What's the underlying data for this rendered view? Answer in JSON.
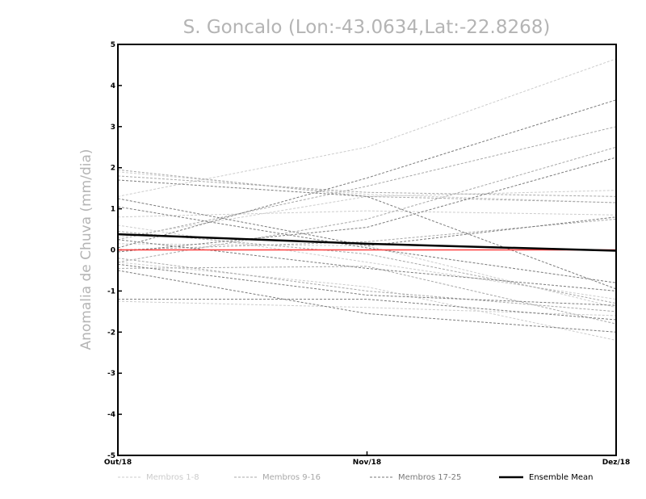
{
  "chart_data": {
    "type": "line",
    "title": "S. Goncalo (Lon:-43.0634,Lat:-22.8268)",
    "ylabel": "Anomalia de Chuva (mm/dia)",
    "xlabel": "",
    "categories": [
      "Out/18",
      "Nov/18",
      "Dez/18"
    ],
    "ylim": [
      -5,
      5
    ],
    "yticks": [
      "-5",
      "-4",
      "-3",
      "-2",
      "-1",
      "0",
      "1",
      "2",
      "3",
      "4",
      "5"
    ],
    "reference_line": {
      "y": 0,
      "color": "#ff4040"
    },
    "colors": {
      "members_1_8": "#cccccc",
      "members_9_16": "#a8a8a8",
      "members_17_25": "#7a7a7a",
      "ensemble_mean": "#000000"
    },
    "legend": [
      {
        "label": "Membros 1-8",
        "group": "members_1_8"
      },
      {
        "label": "Membros 9-16",
        "group": "members_9_16"
      },
      {
        "label": "Membros 17-25",
        "group": "members_17_25"
      },
      {
        "label": "Ensemble Mean",
        "group": "ensemble_mean"
      }
    ],
    "series": [
      {
        "group": "members_1_8",
        "values": [
          1.3,
          2.5,
          4.65
        ]
      },
      {
        "group": "members_1_8",
        "values": [
          1.9,
          1.35,
          1.15
        ]
      },
      {
        "group": "members_1_8",
        "values": [
          0.8,
          0.95,
          0.85
        ]
      },
      {
        "group": "members_1_8",
        "values": [
          0.3,
          1.3,
          1.45
        ]
      },
      {
        "group": "members_1_8",
        "values": [
          0.6,
          -0.3,
          -1.2
        ]
      },
      {
        "group": "members_1_8",
        "values": [
          -0.3,
          -0.9,
          -2.2
        ]
      },
      {
        "group": "members_1_8",
        "values": [
          -1.25,
          -1.4,
          -1.6
        ]
      },
      {
        "group": "members_1_8",
        "values": [
          0.15,
          0.1,
          -1.4
        ]
      },
      {
        "group": "members_9_16",
        "values": [
          1.95,
          1.3,
          1.15
        ]
      },
      {
        "group": "members_9_16",
        "values": [
          1.8,
          1.4,
          1.3
        ]
      },
      {
        "group": "members_9_16",
        "values": [
          0.25,
          1.55,
          3.0
        ]
      },
      {
        "group": "members_9_16",
        "values": [
          -0.3,
          0.75,
          2.5
        ]
      },
      {
        "group": "members_9_16",
        "values": [
          0.0,
          0.2,
          0.75
        ]
      },
      {
        "group": "members_9_16",
        "values": [
          -0.45,
          -0.4,
          -1.8
        ]
      },
      {
        "group": "members_9_16",
        "values": [
          0.45,
          -0.1,
          -1.3
        ]
      },
      {
        "group": "members_9_16",
        "values": [
          -0.2,
          -1.0,
          -1.5
        ]
      },
      {
        "group": "members_17_25",
        "values": [
          0.05,
          1.75,
          3.65
        ]
      },
      {
        "group": "members_17_25",
        "values": [
          -0.05,
          0.55,
          2.25
        ]
      },
      {
        "group": "members_17_25",
        "values": [
          1.25,
          0.1,
          0.8
        ]
      },
      {
        "group": "members_17_25",
        "values": [
          1.05,
          0.05,
          -0.8
        ]
      },
      {
        "group": "members_17_25",
        "values": [
          1.7,
          1.3,
          -0.95
        ]
      },
      {
        "group": "members_17_25",
        "values": [
          0.25,
          -0.45,
          -1.0
        ]
      },
      {
        "group": "members_17_25",
        "values": [
          -0.35,
          -1.1,
          -1.35
        ]
      },
      {
        "group": "members_17_25",
        "values": [
          -0.5,
          -1.55,
          -2.0
        ]
      },
      {
        "group": "members_17_25",
        "values": [
          -1.2,
          -1.2,
          -1.7
        ]
      },
      {
        "group": "ensemble_mean",
        "values": [
          0.38,
          0.15,
          -0.02
        ]
      }
    ]
  }
}
